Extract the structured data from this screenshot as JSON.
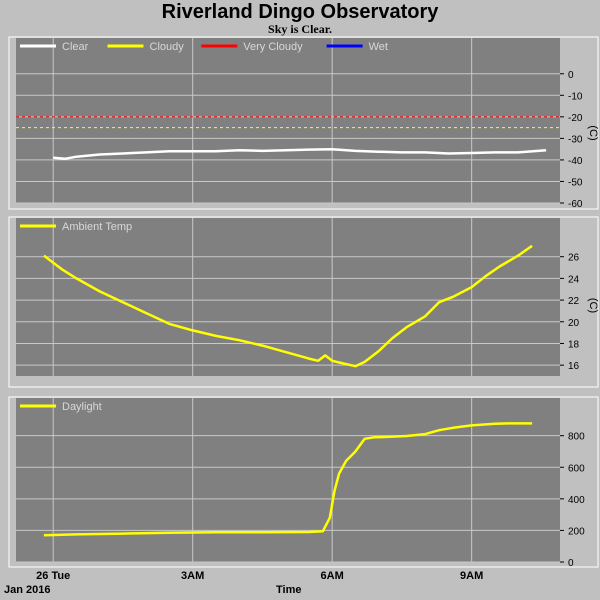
{
  "title": "Riverland Dingo Observatory",
  "subtitle": "Sky is Clear.",
  "x_axis": {
    "label": "Time",
    "date_label": "Jan 2016",
    "ticks": [
      "26 Tue",
      "3AM",
      "6AM",
      "9AM"
    ]
  },
  "colors": {
    "background": "#c0c0c0",
    "plot_bg": "#808080",
    "grid": "#c8c8c8",
    "clear": "#ffffff",
    "cloudy": "#ffff00",
    "very_cloudy": "#ff0000",
    "wet": "#0000ff"
  },
  "chart_data": [
    {
      "type": "line",
      "panel": "sky",
      "ylabel": "(C)",
      "ylim": [
        -60,
        5
      ],
      "yticks": [
        "0",
        "-10",
        "-20",
        "-30",
        "-40",
        "-50",
        "-60"
      ],
      "tick_values": [
        0,
        -10,
        -20,
        -30,
        -40,
        -50,
        -60
      ],
      "legend": [
        "Clear",
        "Cloudy",
        "Very Cloudy",
        "Wet"
      ],
      "thresholds": [
        {
          "name": "Very Cloudy",
          "value": -20
        },
        {
          "name": "Cloudy",
          "value": -25
        }
      ],
      "series": [
        {
          "name": "Clear",
          "x": [
            0,
            0.25,
            0.5,
            1,
            1.5,
            2,
            2.5,
            3,
            3.5,
            4,
            4.5,
            5,
            5.5,
            6,
            6.5,
            7,
            7.5,
            8,
            8.5,
            9,
            9.5,
            10,
            10.6
          ],
          "values": [
            -39,
            -39.5,
            -38.5,
            -37.5,
            -37,
            -36.5,
            -36,
            -36,
            -36,
            -35.5,
            -35.8,
            -35.5,
            -35.2,
            -35,
            -35.8,
            -36.2,
            -36.5,
            -36.5,
            -37,
            -36.8,
            -36.5,
            -36.5,
            -35.5
          ]
        }
      ]
    },
    {
      "type": "line",
      "panel": "ambient",
      "ylabel": "(C)",
      "ylim": [
        15,
        28
      ],
      "yticks": [
        "16",
        "18",
        "20",
        "22",
        "24",
        "26"
      ],
      "tick_values": [
        16,
        18,
        20,
        22,
        24,
        26
      ],
      "legend": [
        "Ambient Temp"
      ],
      "series": [
        {
          "name": "Ambient Temp",
          "x": [
            -0.2,
            0.2,
            0.5,
            1,
            1.5,
            2,
            2.5,
            3,
            3.5,
            4,
            4.5,
            5,
            5.5,
            5.7,
            5.85,
            6,
            6.3,
            6.5,
            6.7,
            7,
            7.3,
            7.6,
            8,
            8.3,
            8.6,
            9,
            9.3,
            9.6,
            10,
            10.3
          ],
          "values": [
            26.1,
            24.8,
            24,
            22.8,
            21.8,
            20.8,
            19.8,
            19.2,
            18.7,
            18.3,
            17.8,
            17.2,
            16.6,
            16.4,
            16.9,
            16.4,
            16.1,
            15.9,
            16.3,
            17.3,
            18.5,
            19.5,
            20.5,
            21.8,
            22.3,
            23.2,
            24.2,
            25.1,
            26.1,
            27
          ]
        }
      ]
    },
    {
      "type": "line",
      "panel": "daylight",
      "ylabel": "",
      "ylim": [
        0,
        950
      ],
      "yticks": [
        "0",
        "200",
        "400",
        "600",
        "800"
      ],
      "tick_values": [
        0,
        200,
        400,
        600,
        800
      ],
      "legend": [
        "Daylight"
      ],
      "series": [
        {
          "name": "Daylight",
          "x": [
            -0.2,
            0.5,
            1.5,
            2.5,
            3.5,
            4.5,
            5.5,
            5.8,
            5.95,
            6.05,
            6.15,
            6.3,
            6.5,
            6.7,
            6.9,
            7.2,
            7.6,
            8,
            8.3,
            8.6,
            9,
            9.5,
            9.8,
            10.3
          ],
          "values": [
            170,
            175,
            180,
            185,
            188,
            188,
            190,
            195,
            280,
            450,
            560,
            640,
            700,
            780,
            790,
            792,
            798,
            810,
            835,
            850,
            865,
            875,
            878,
            878
          ]
        }
      ]
    }
  ]
}
